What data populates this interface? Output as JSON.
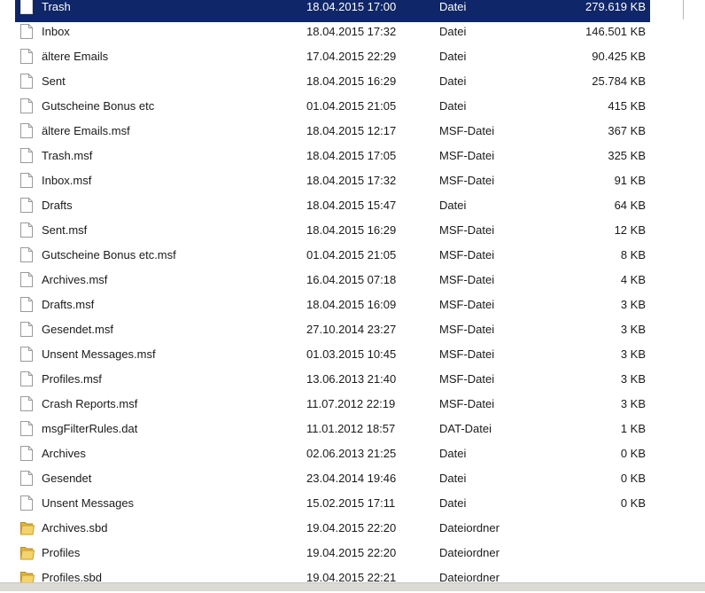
{
  "files": [
    {
      "name": "Trash",
      "modified": "18.04.2015 17:00",
      "type": "Datei",
      "size": "279.619 KB"
    },
    {
      "name": "Inbox",
      "modified": "18.04.2015 17:32",
      "type": "Datei",
      "size": "146.501 KB"
    },
    {
      "name": "ältere Emails",
      "modified": "17.04.2015 22:29",
      "type": "Datei",
      "size": "90.425 KB"
    },
    {
      "name": "Sent",
      "modified": "18.04.2015 16:29",
      "type": "Datei",
      "size": "25.784 KB"
    },
    {
      "name": "Gutscheine Bonus etc",
      "modified": "01.04.2015 21:05",
      "type": "Datei",
      "size": "415 KB"
    },
    {
      "name": "ältere Emails.msf",
      "modified": "18.04.2015 12:17",
      "type": "MSF-Datei",
      "size": "367 KB"
    },
    {
      "name": "Trash.msf",
      "modified": "18.04.2015 17:05",
      "type": "MSF-Datei",
      "size": "325 KB"
    },
    {
      "name": "Inbox.msf",
      "modified": "18.04.2015 17:32",
      "type": "MSF-Datei",
      "size": "91 KB"
    },
    {
      "name": "Drafts",
      "modified": "18.04.2015 15:47",
      "type": "Datei",
      "size": "64 KB"
    },
    {
      "name": "Sent.msf",
      "modified": "18.04.2015 16:29",
      "type": "MSF-Datei",
      "size": "12 KB"
    },
    {
      "name": "Gutscheine Bonus etc.msf",
      "modified": "01.04.2015 21:05",
      "type": "MSF-Datei",
      "size": "8 KB"
    },
    {
      "name": "Archives.msf",
      "modified": "16.04.2015 07:18",
      "type": "MSF-Datei",
      "size": "4 KB"
    },
    {
      "name": "Drafts.msf",
      "modified": "18.04.2015 16:09",
      "type": "MSF-Datei",
      "size": "3 KB"
    },
    {
      "name": "Gesendet.msf",
      "modified": "27.10.2014 23:27",
      "type": "MSF-Datei",
      "size": "3 KB"
    },
    {
      "name": "Unsent Messages.msf",
      "modified": "01.03.2015 10:45",
      "type": "MSF-Datei",
      "size": "3 KB"
    },
    {
      "name": "Profiles.msf",
      "modified": "13.06.2013 21:40",
      "type": "MSF-Datei",
      "size": "3 KB"
    },
    {
      "name": "Crash Reports.msf",
      "modified": "11.07.2012 22:19",
      "type": "MSF-Datei",
      "size": "3 KB"
    },
    {
      "name": "msgFilterRules.dat",
      "modified": "11.01.2012 18:57",
      "type": "DAT-Datei",
      "size": "1 KB"
    },
    {
      "name": "Archives",
      "modified": "02.06.2013 21:25",
      "type": "Datei",
      "size": "0 KB"
    },
    {
      "name": "Gesendet",
      "modified": "23.04.2014 19:46",
      "type": "Datei",
      "size": "0 KB"
    },
    {
      "name": "Unsent Messages",
      "modified": "15.02.2015 17:11",
      "type": "Datei",
      "size": "0 KB"
    },
    {
      "name": "Archives.sbd",
      "modified": "19.04.2015 22:20",
      "type": "Dateiordner"
    },
    {
      "name": "Profiles",
      "modified": "19.04.2015 22:20",
      "type": "Dateiordner"
    },
    {
      "name": "Profiles.sbd",
      "modified": "19.04.2015 22:21",
      "type": "Dateiordner"
    }
  ]
}
